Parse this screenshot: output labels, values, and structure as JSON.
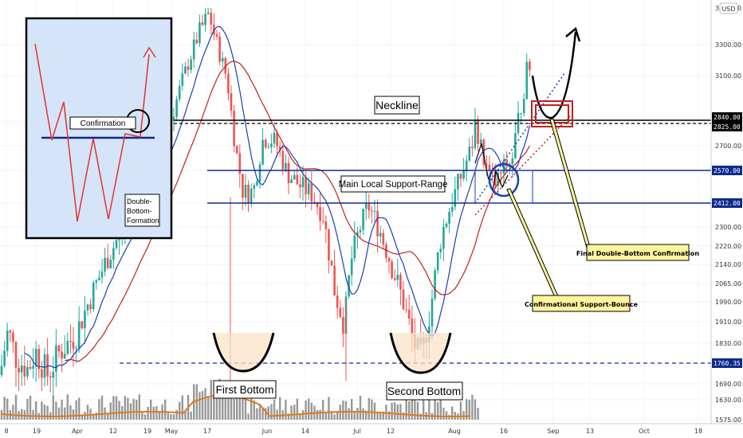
{
  "currency": "USD",
  "chart_data": {
    "type": "candlestick",
    "title": "",
    "y_axis": {
      "position": "right",
      "ticks": [
        "3300.00",
        "3100.00",
        "2840.00",
        "2825.00",
        "2700.00",
        "2570.00",
        "2412.00",
        "2300.00",
        "2220.00",
        "2140.00",
        "2065.00",
        "1990.00",
        "1910.00",
        "1830.00",
        "1760.35",
        "1690.00",
        "1630.00",
        "1575.00"
      ],
      "partial_top_tick": "3500.00"
    },
    "x_axis": {
      "ticks": [
        "8",
        "19",
        "Apr",
        "12",
        "19",
        "May",
        "17",
        "Jun",
        "14",
        "Jul",
        "12",
        "Aug",
        "16",
        "Sep",
        "13",
        "Oct",
        "18"
      ]
    },
    "levels": [
      {
        "name": "Neckline",
        "value": 2840,
        "style": "solid",
        "color": "#000000"
      },
      {
        "name": "Neckline lower",
        "value": 2825,
        "style": "dashed",
        "color": "#000000"
      },
      {
        "name": "Support range top",
        "value": 2570,
        "style": "solid",
        "color": "#0d2a8c"
      },
      {
        "name": "Support range bottom",
        "value": 2412,
        "style": "solid",
        "color": "#0d2a8c"
      },
      {
        "name": "Bottom level",
        "value": 1760.35,
        "style": "dashed",
        "color": "#0d2a8c"
      }
    ],
    "price_tags": [
      {
        "text": "2840.00",
        "color": "#000000"
      },
      {
        "text": "2825.00",
        "color": "#000000"
      },
      {
        "text": "2570.00",
        "color": "#0d2a8c"
      },
      {
        "text": "2412.00",
        "color": "#0d2a8c"
      },
      {
        "text": "1760.35",
        "color": "#0d2a8c"
      }
    ],
    "series": [
      {
        "name": "",
        "kind": "moving-average",
        "color": "#1b3fb5"
      },
      {
        "name": "",
        "kind": "moving-average",
        "color": "#c0201a"
      },
      {
        "name": "",
        "kind": "volume-average",
        "color": "#e07b1a"
      }
    ],
    "colors": {
      "up": "#26a69a",
      "down": "#ef5350",
      "support": "#0d2a8c",
      "callout_fill": "#fff59d"
    }
  },
  "annotations": {
    "neckline_label": "Neckline",
    "support_label": "Main Local Support-Range",
    "first_bottom": "First Bottom",
    "second_bottom": "Second Bottom",
    "final_confirmation": "Final Double-Bottom Confirmation",
    "support_bounce": "Confirmational Support-Bounce"
  },
  "inset": {
    "confirmation_label": "Confirmation",
    "pattern_label_lines": [
      "Double-",
      "Bottom-",
      "Formation"
    ]
  }
}
